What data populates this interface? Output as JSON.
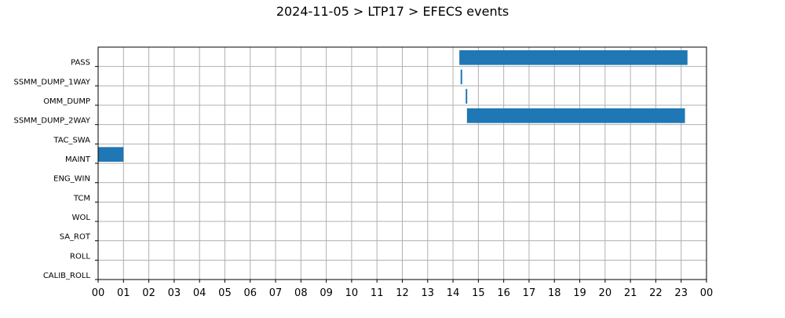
{
  "chart_data": {
    "type": "bar",
    "orientation": "horizontal",
    "title": "2024-11-05 > LTP17 > EFECS events",
    "xlabel": "",
    "ylabel": "",
    "xlim": [
      0,
      24
    ],
    "x_unit": "hour of day",
    "x_ticks": [
      "00",
      "01",
      "02",
      "03",
      "04",
      "05",
      "06",
      "07",
      "08",
      "09",
      "10",
      "11",
      "12",
      "13",
      "14",
      "15",
      "16",
      "17",
      "18",
      "19",
      "20",
      "21",
      "22",
      "23",
      "00"
    ],
    "categories": [
      "PASS",
      "SSMM_DUMP_1WAY",
      "OMM_DUMP",
      "SSMM_DUMP_2WAY",
      "TAC_SWA",
      "MAINT",
      "ENG_WIN",
      "TCM",
      "WOL",
      "SA_ROT",
      "ROLL",
      "CALIB_ROLL"
    ],
    "events": [
      {
        "category": "PASS",
        "start": 14.25,
        "end": 23.25
      },
      {
        "category": "SSMM_DUMP_1WAY",
        "start": 14.3,
        "end": 14.35
      },
      {
        "category": "OMM_DUMP",
        "start": 14.5,
        "end": 14.55
      },
      {
        "category": "SSMM_DUMP_2WAY",
        "start": 14.55,
        "end": 23.15
      },
      {
        "category": "MAINT",
        "start": 0.0,
        "end": 1.0
      }
    ],
    "grid": true,
    "bar_color": "#1f77b4"
  }
}
